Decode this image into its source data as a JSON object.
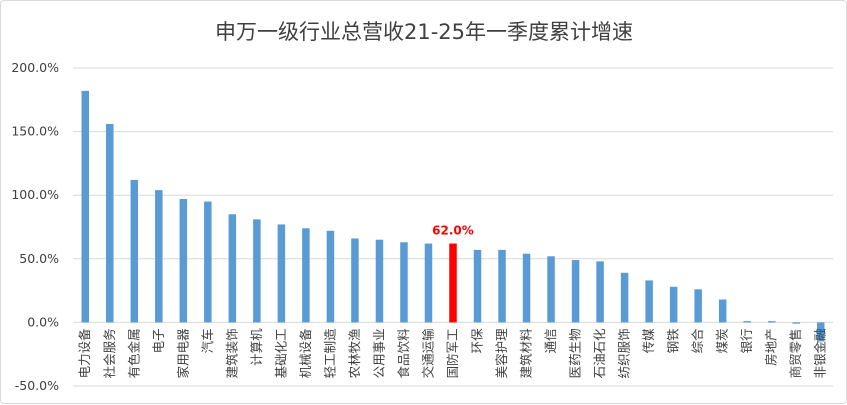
{
  "chart_data": {
    "type": "bar",
    "title": "申万一级行业总营收21-25年一季度累计增速",
    "xlabel": "",
    "ylabel": "",
    "ylim": [
      -0.5,
      2.0
    ],
    "ytick_values": [
      -0.5,
      0.0,
      0.5,
      1.0,
      1.5,
      2.0
    ],
    "ytick_labels": [
      "-50.0%",
      "0.0%",
      "50.0%",
      "100.0%",
      "150.0%",
      "200.0%"
    ],
    "grid": true,
    "legend": "none",
    "categories": [
      "电力设备",
      "社会服务",
      "有色金属",
      "电子",
      "家用电器",
      "汽车",
      "建筑装饰",
      "计算机",
      "基础化工",
      "机械设备",
      "轻工制造",
      "农林牧渔",
      "公用事业",
      "食品饮料",
      "交通运输",
      "国防军工",
      "环保",
      "美容护理",
      "建筑材料",
      "通信",
      "医药生物",
      "石油石化",
      "纺织服饰",
      "传媒",
      "钢铁",
      "综合",
      "煤炭",
      "银行",
      "房地产",
      "商贸零售",
      "非银金融"
    ],
    "values": [
      1.82,
      1.56,
      1.12,
      1.04,
      0.97,
      0.95,
      0.85,
      0.81,
      0.77,
      0.74,
      0.72,
      0.66,
      0.65,
      0.63,
      0.62,
      0.62,
      0.57,
      0.57,
      0.54,
      0.52,
      0.49,
      0.48,
      0.39,
      0.33,
      0.28,
      0.26,
      0.18,
      0.01,
      0.01,
      -0.01,
      -0.15
    ],
    "highlight": {
      "category": "国防军工",
      "label": "62.0%",
      "color": "#ff0000"
    },
    "bar_color": "#5b9bd5"
  }
}
